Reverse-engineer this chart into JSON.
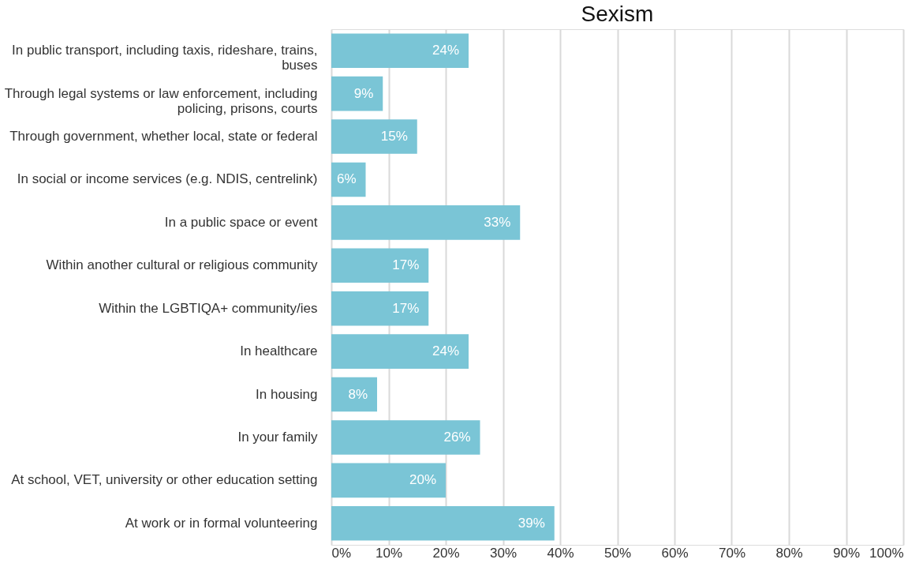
{
  "chart_data": {
    "type": "bar",
    "orientation": "horizontal",
    "title": "Sexism",
    "categories": [
      "In public transport, including taxis, rideshare, trains, buses",
      "Through legal systems or law enforcement, including policing, prisons, courts",
      "Through government, whether local, state or federal",
      "In social or income services (e.g. NDIS, centrelink)",
      "In a public space or event",
      "Within another cultural or religious community",
      "Within the LGBTIQA+ community/ies",
      "In healthcare",
      "In housing",
      "In your family",
      "At school, VET, university or other education setting",
      "At work or in formal volunteering"
    ],
    "values": [
      24,
      9,
      15,
      6,
      33,
      17,
      17,
      24,
      8,
      26,
      20,
      39
    ],
    "value_labels": [
      "24%",
      "9%",
      "15%",
      "6%",
      "33%",
      "17%",
      "17%",
      "24%",
      "8%",
      "26%",
      "20%",
      "39%"
    ],
    "color": "#7ac5d6",
    "xlim": [
      0,
      100
    ],
    "xticks": [
      {
        "value": 0,
        "label": "0%"
      },
      {
        "value": 10,
        "label": "10%"
      },
      {
        "value": 20,
        "label": "20%"
      },
      {
        "value": 30,
        "label": "30%"
      },
      {
        "value": 40,
        "label": "40%"
      },
      {
        "value": 50,
        "label": "50%"
      },
      {
        "value": 60,
        "label": "60%"
      },
      {
        "value": 70,
        "label": "70%"
      },
      {
        "value": 80,
        "label": "80%"
      },
      {
        "value": 90,
        "label": "90%"
      },
      {
        "value": 100,
        "label": "100%"
      }
    ],
    "grid": "x"
  }
}
